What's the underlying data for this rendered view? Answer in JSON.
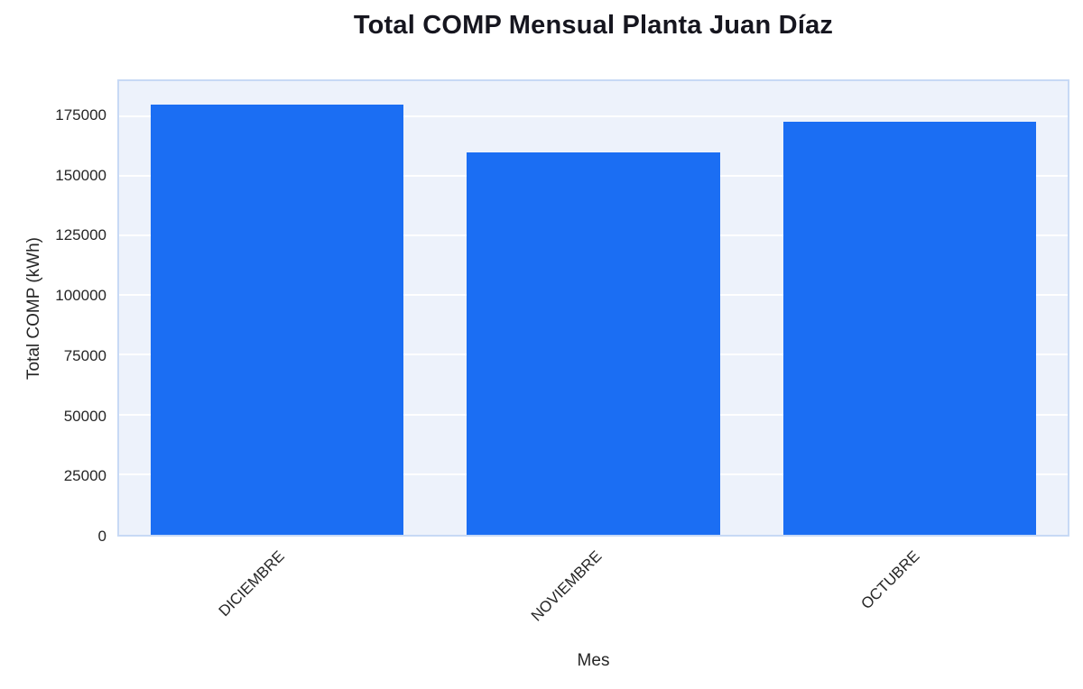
{
  "chart_data": {
    "type": "bar",
    "title": "Total COMP Mensual Planta Juan Díaz",
    "xlabel": "Mes",
    "ylabel": "Total COMP (kWh)",
    "categories": [
      "DICIEMBRE",
      "NOVIEMBRE",
      "OCTUBRE"
    ],
    "values": [
      180000,
      160000,
      173000
    ],
    "yticks": [
      0,
      25000,
      50000,
      75000,
      100000,
      125000,
      150000,
      175000
    ],
    "ylim": [
      0,
      190000
    ],
    "grid": true,
    "legend": "none",
    "bar_color": "#1b6ef3",
    "plot_bg": "#edf2fb",
    "plot_border": "#c7d9f5",
    "grid_color": "#ffffff",
    "text_color": "#262626",
    "title_color": "#16161f"
  }
}
